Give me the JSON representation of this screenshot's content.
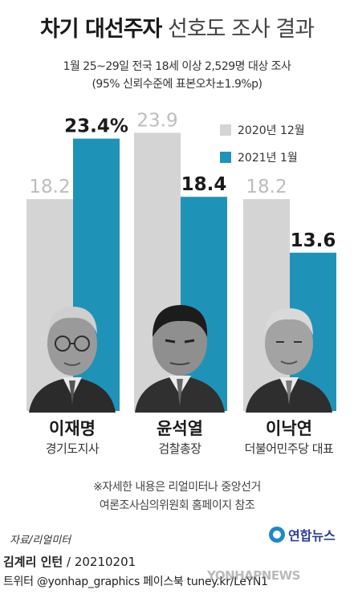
{
  "title": {
    "bold": "차기 대선주자",
    "light": "선호도 조사 결과"
  },
  "subtitle_line1": "1월 25~29일 전국 18세 이상 2,529명 대상 조사",
  "subtitle_line2": "(95% 신뢰수준에 표본오차±1.9%p)",
  "colors": {
    "dec2020": "#d4d4d4",
    "jan2021": "#1f93b7",
    "label_old": "#bdbdbd",
    "label_new": "#1a1a1a"
  },
  "chart_data": {
    "type": "bar",
    "categories": [
      "이재명",
      "윤석열",
      "이낙연"
    ],
    "series": [
      {
        "name": "2020년 12월",
        "values": [
          18.2,
          23.9,
          18.2
        ],
        "labels": [
          "18.2",
          "23.9",
          "18.2"
        ]
      },
      {
        "name": "2021년 1월",
        "values": [
          23.4,
          18.4,
          13.6
        ],
        "labels": [
          "23.4%",
          "18.4",
          "13.6"
        ]
      }
    ],
    "ylim": [
      0,
      25
    ],
    "legend": "top-right",
    "grid": false
  },
  "candidates": [
    {
      "name": "이재명",
      "role": "경기도지사"
    },
    {
      "name": "윤석열",
      "role": "검찰총장"
    },
    {
      "name": "이낙연",
      "role": "더불어민주당 대표"
    }
  ],
  "note_line1": "※자세한 내용은 리얼미터나 중앙선거",
  "note_line2": "여론조사심의위원회 홈페이지 참조",
  "source": "자료/리얼미터",
  "agency": "연합뉴스",
  "credit_name": "김계리 인턴",
  "credit_date": " / 20210201",
  "sns": "트위터 @yonhap_graphics  페이스북 tuney.kr/LeYN1",
  "watermark": "YONHAPNEWS"
}
